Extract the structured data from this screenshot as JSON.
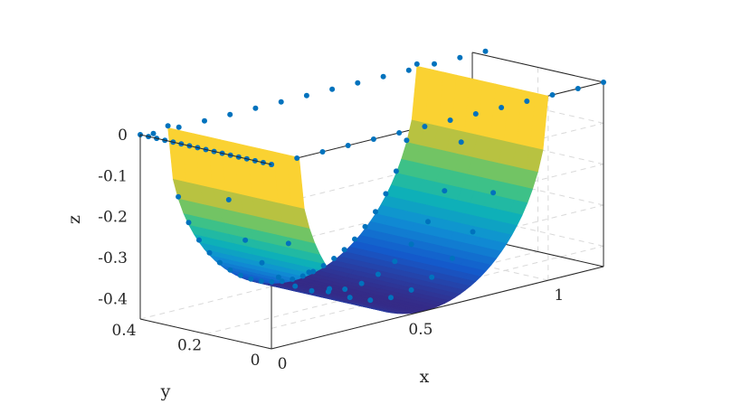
{
  "chart_data": {
    "type": "scatter",
    "subtype": "3d surface with scattered points",
    "title": "",
    "xlabel": "x",
    "ylabel": "y",
    "zlabel": "z",
    "xlim": [
      0,
      1.2
    ],
    "ylim": [
      0,
      0.4
    ],
    "zlim": [
      -0.45,
      0
    ],
    "x_ticks": [
      "0",
      "0.5",
      "1"
    ],
    "y_ticks": [
      "0",
      "0.2",
      "0.4"
    ],
    "z_ticks": [
      "0",
      "-0.1",
      "-0.2",
      "-0.3",
      "-0.4"
    ],
    "x_tick_values": [
      0,
      0.5,
      1
    ],
    "y_tick_values": [
      0,
      0.2,
      0.4
    ],
    "z_tick_values": [
      0,
      -0.1,
      -0.2,
      -0.3,
      -0.4
    ],
    "grid": true,
    "colormap": "parula",
    "surface": {
      "description": "half-tube z = -sqrt(R^2 - (x - c)^2), extruded along y",
      "center_x": 0.55,
      "radius": 0.45,
      "y_range": [
        0,
        0.4
      ]
    },
    "point_color": "#0072bd",
    "points": {
      "top_row_z": 0,
      "bottom_row_y": 0.4
    }
  }
}
